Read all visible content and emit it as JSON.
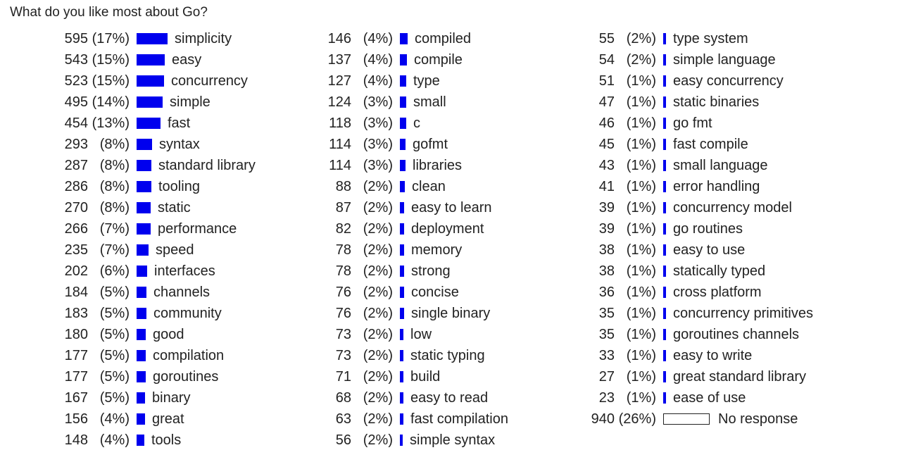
{
  "title": "What do you like most about Go?",
  "colors": {
    "bar": "#0000ee",
    "no_response_bar": "#ffffff"
  },
  "chart_data": {
    "type": "bar",
    "orientation": "horizontal",
    "title": "What do you like most about Go?",
    "xlabel": "",
    "ylabel": "",
    "grid": false,
    "legend": "none",
    "items": [
      {
        "label": "simplicity",
        "count": 595,
        "pct": "17%"
      },
      {
        "label": "easy",
        "count": 543,
        "pct": "15%"
      },
      {
        "label": "concurrency",
        "count": 523,
        "pct": "15%"
      },
      {
        "label": "simple",
        "count": 495,
        "pct": "14%"
      },
      {
        "label": "fast",
        "count": 454,
        "pct": "13%"
      },
      {
        "label": "syntax",
        "count": 293,
        "pct": "8%"
      },
      {
        "label": "standard library",
        "count": 287,
        "pct": "8%"
      },
      {
        "label": "tooling",
        "count": 286,
        "pct": "8%"
      },
      {
        "label": "static",
        "count": 270,
        "pct": "8%"
      },
      {
        "label": "performance",
        "count": 266,
        "pct": "7%"
      },
      {
        "label": "speed",
        "count": 235,
        "pct": "7%"
      },
      {
        "label": "interfaces",
        "count": 202,
        "pct": "6%"
      },
      {
        "label": "channels",
        "count": 184,
        "pct": "5%"
      },
      {
        "label": "community",
        "count": 183,
        "pct": "5%"
      },
      {
        "label": "good",
        "count": 180,
        "pct": "5%"
      },
      {
        "label": "compilation",
        "count": 177,
        "pct": "5%"
      },
      {
        "label": "goroutines",
        "count": 177,
        "pct": "5%"
      },
      {
        "label": "binary",
        "count": 167,
        "pct": "5%"
      },
      {
        "label": "great",
        "count": 156,
        "pct": "4%"
      },
      {
        "label": "tools",
        "count": 148,
        "pct": "4%"
      },
      {
        "label": "compiled",
        "count": 146,
        "pct": "4%"
      },
      {
        "label": "compile",
        "count": 137,
        "pct": "4%"
      },
      {
        "label": "type",
        "count": 127,
        "pct": "4%"
      },
      {
        "label": "small",
        "count": 124,
        "pct": "3%"
      },
      {
        "label": "c",
        "count": 118,
        "pct": "3%"
      },
      {
        "label": "gofmt",
        "count": 114,
        "pct": "3%"
      },
      {
        "label": "libraries",
        "count": 114,
        "pct": "3%"
      },
      {
        "label": "clean",
        "count": 88,
        "pct": "2%"
      },
      {
        "label": "easy to learn",
        "count": 87,
        "pct": "2%"
      },
      {
        "label": "deployment",
        "count": 82,
        "pct": "2%"
      },
      {
        "label": "memory",
        "count": 78,
        "pct": "2%"
      },
      {
        "label": "strong",
        "count": 78,
        "pct": "2%"
      },
      {
        "label": "concise",
        "count": 76,
        "pct": "2%"
      },
      {
        "label": "single binary",
        "count": 76,
        "pct": "2%"
      },
      {
        "label": "low",
        "count": 73,
        "pct": "2%"
      },
      {
        "label": "static typing",
        "count": 73,
        "pct": "2%"
      },
      {
        "label": "build",
        "count": 71,
        "pct": "2%"
      },
      {
        "label": "easy to read",
        "count": 68,
        "pct": "2%"
      },
      {
        "label": "fast compilation",
        "count": 63,
        "pct": "2%"
      },
      {
        "label": "simple syntax",
        "count": 56,
        "pct": "2%"
      },
      {
        "label": "type system",
        "count": 55,
        "pct": "2%"
      },
      {
        "label": "simple language",
        "count": 54,
        "pct": "2%"
      },
      {
        "label": "easy concurrency",
        "count": 51,
        "pct": "1%"
      },
      {
        "label": "static binaries",
        "count": 47,
        "pct": "1%"
      },
      {
        "label": "go fmt",
        "count": 46,
        "pct": "1%"
      },
      {
        "label": "fast compile",
        "count": 45,
        "pct": "1%"
      },
      {
        "label": "small language",
        "count": 43,
        "pct": "1%"
      },
      {
        "label": "error handling",
        "count": 41,
        "pct": "1%"
      },
      {
        "label": "concurrency model",
        "count": 39,
        "pct": "1%"
      },
      {
        "label": "go routines",
        "count": 39,
        "pct": "1%"
      },
      {
        "label": "easy to use",
        "count": 38,
        "pct": "1%"
      },
      {
        "label": "statically typed",
        "count": 38,
        "pct": "1%"
      },
      {
        "label": "cross platform",
        "count": 36,
        "pct": "1%"
      },
      {
        "label": "concurrency primitives",
        "count": 35,
        "pct": "1%"
      },
      {
        "label": "goroutines channels",
        "count": 35,
        "pct": "1%"
      },
      {
        "label": "easy to write",
        "count": 33,
        "pct": "1%"
      },
      {
        "label": "great standard library",
        "count": 27,
        "pct": "1%"
      },
      {
        "label": "ease of use",
        "count": 23,
        "pct": "1%"
      },
      {
        "label": "No response",
        "count": 940,
        "pct": "26%",
        "no_response": true
      }
    ]
  }
}
